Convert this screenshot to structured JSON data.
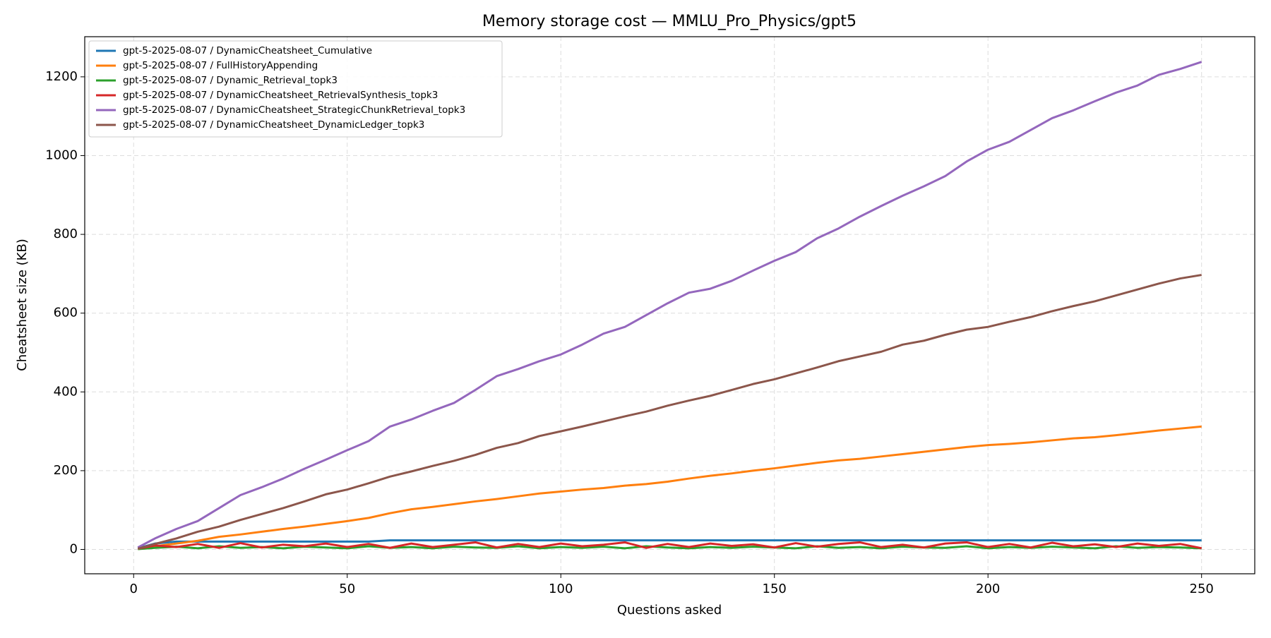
{
  "chart_data": {
    "type": "line",
    "title": "Memory storage cost — MMLU_Pro_Physics/gpt5",
    "x_label": "Questions asked",
    "y_label": "Cheatsheet size (KB)",
    "x": [
      1,
      5,
      10,
      15,
      20,
      25,
      30,
      35,
      40,
      45,
      50,
      55,
      60,
      65,
      70,
      75,
      80,
      85,
      90,
      95,
      100,
      105,
      110,
      115,
      120,
      125,
      130,
      135,
      140,
      145,
      150,
      155,
      160,
      165,
      170,
      175,
      180,
      185,
      190,
      195,
      200,
      205,
      210,
      215,
      220,
      225,
      230,
      235,
      240,
      245,
      250
    ],
    "series": [
      {
        "name": "gpt-5-2025-08-07 / DynamicCheatsheet_Cumulative",
        "color": "#1f77b4",
        "values": [
          3,
          15,
          20,
          20,
          20,
          20,
          20,
          20,
          20,
          20,
          20,
          20,
          23,
          23,
          23,
          23,
          23,
          23,
          23,
          23,
          23,
          23,
          23,
          23,
          23,
          23,
          23,
          23,
          23,
          23,
          23,
          23,
          23,
          23,
          23,
          23,
          23,
          23,
          23,
          23,
          23,
          23,
          23,
          23,
          23,
          23,
          23,
          23,
          23,
          23,
          23
        ]
      },
      {
        "name": "gpt-5-2025-08-07 / FullHistoryAppending",
        "color": "#ff7f0e",
        "values": [
          1,
          8,
          15,
          22,
          32,
          38,
          45,
          52,
          58,
          65,
          72,
          80,
          92,
          102,
          108,
          115,
          122,
          128,
          135,
          142,
          147,
          152,
          156,
          162,
          166,
          172,
          180,
          187,
          193,
          200,
          206,
          213,
          220,
          226,
          230,
          236,
          242,
          248,
          254,
          260,
          265,
          268,
          272,
          277,
          282,
          285,
          290,
          296,
          302,
          307,
          312
        ]
      },
      {
        "name": "gpt-5-2025-08-07 / Dynamic_Retrieval_topk3",
        "color": "#2ca02c",
        "values": [
          1,
          4,
          7,
          3,
          8,
          4,
          6,
          3,
          7,
          5,
          3,
          8,
          4,
          6,
          3,
          7,
          5,
          4,
          8,
          3,
          6,
          4,
          7,
          3,
          8,
          5,
          3,
          6,
          4,
          7,
          5,
          3,
          8,
          4,
          6,
          3,
          7,
          5,
          4,
          8,
          3,
          6,
          4,
          7,
          5,
          3,
          8,
          4,
          6,
          5,
          3
        ]
      },
      {
        "name": "gpt-5-2025-08-07 / DynamicCheatsheet_RetrievalSynthesis_topk3",
        "color": "#d62728",
        "values": [
          2,
          10,
          6,
          14,
          4,
          16,
          5,
          12,
          8,
          15,
          6,
          14,
          4,
          15,
          6,
          12,
          18,
          5,
          14,
          6,
          15,
          8,
          12,
          18,
          4,
          14,
          6,
          15,
          9,
          13,
          5,
          16,
          7,
          14,
          18,
          6,
          12,
          5,
          15,
          18,
          6,
          14,
          5,
          17,
          8,
          13,
          6,
          15,
          9,
          14,
          3
        ]
      },
      {
        "name": "gpt-5-2025-08-07 / DynamicCheatsheet_StrategicChunkRetrieval_topk3",
        "color": "#9467bd",
        "values": [
          5,
          28,
          52,
          72,
          105,
          138,
          158,
          180,
          205,
          228,
          252,
          275,
          312,
          330,
          352,
          372,
          405,
          440,
          458,
          478,
          495,
          520,
          548,
          565,
          595,
          625,
          652,
          662,
          682,
          708,
          733,
          755,
          790,
          815,
          845,
          872,
          898,
          922,
          948,
          985,
          1015,
          1035,
          1065,
          1095,
          1115,
          1138,
          1160,
          1178,
          1205,
          1220,
          1238
        ]
      },
      {
        "name": "gpt-5-2025-08-07 / DynamicCheatsheet_DynamicLedger_topk3",
        "color": "#8c564b",
        "values": [
          2,
          14,
          28,
          45,
          58,
          75,
          90,
          105,
          122,
          140,
          152,
          168,
          185,
          198,
          212,
          225,
          240,
          258,
          270,
          288,
          300,
          312,
          325,
          338,
          350,
          365,
          378,
          390,
          405,
          420,
          432,
          447,
          462,
          478,
          490,
          502,
          520,
          530,
          545,
          558,
          565,
          578,
          590,
          605,
          618,
          630,
          645,
          660,
          675,
          688,
          697
        ]
      }
    ],
    "xlim": [
      -11.45,
      262.45
    ],
    "ylim": [
      -61.8,
      1301.9
    ],
    "xticks": [
      0,
      50,
      100,
      150,
      200,
      250
    ],
    "yticks": [
      0,
      200,
      400,
      600,
      800,
      1000,
      1200
    ],
    "grid": true,
    "legend": "upper-left"
  }
}
